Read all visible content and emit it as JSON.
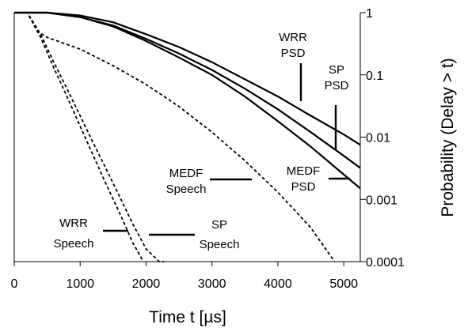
{
  "chart_data": {
    "type": "line",
    "xlabel": "Time t [µs]",
    "ylabel": "Probability (Delay > t)",
    "xlim": [
      0,
      5250
    ],
    "ylim": [
      0.0001,
      1
    ],
    "y_scale": "log",
    "x_ticks": [
      "0",
      "1000",
      "2000",
      "3000",
      "4000",
      "5000"
    ],
    "y_ticks": [
      "1",
      "0.1",
      "0.01",
      "0.001",
      "0.0001"
    ],
    "grid": false,
    "series": [
      {
        "name": "WRR PSD",
        "style": "solid",
        "x": [
          0,
          500,
          1000,
          1500,
          2000,
          2500,
          3000,
          3500,
          4000,
          4500,
          5000,
          5250
        ],
        "y": [
          1,
          1,
          0.9,
          0.7,
          0.45,
          0.28,
          0.16,
          0.085,
          0.045,
          0.022,
          0.011,
          0.0075
        ]
      },
      {
        "name": "SP PSD",
        "style": "solid",
        "x": [
          0,
          500,
          1000,
          1500,
          2000,
          2500,
          3000,
          3500,
          4000,
          4500,
          5000,
          5250
        ],
        "y": [
          1,
          1,
          0.85,
          0.62,
          0.38,
          0.22,
          0.12,
          0.06,
          0.028,
          0.012,
          0.005,
          0.0032
        ]
      },
      {
        "name": "MEDF PSD",
        "style": "solid",
        "x": [
          0,
          500,
          1000,
          1500,
          2000,
          2500,
          3000,
          3500,
          4000,
          4500,
          5000,
          5250
        ],
        "y": [
          1,
          1,
          0.85,
          0.6,
          0.35,
          0.19,
          0.1,
          0.045,
          0.018,
          0.007,
          0.0025,
          0.0015
        ]
      },
      {
        "name": "MEDF Speech",
        "style": "dashed",
        "x": [
          0,
          200,
          350,
          500,
          1000,
          1500,
          2000,
          2500,
          3000,
          3500,
          4000,
          4500,
          4860
        ],
        "y": [
          1,
          1,
          0.5,
          0.4,
          0.26,
          0.14,
          0.07,
          0.031,
          0.012,
          0.0042,
          0.0013,
          0.00035,
          0.0001
        ]
      },
      {
        "name": "WRR Speech",
        "style": "dashed",
        "x": [
          0,
          200,
          400,
          600,
          800,
          1000,
          1200,
          1400,
          1600,
          1800,
          1960
        ],
        "y": [
          1,
          1,
          0.4,
          0.13,
          0.045,
          0.015,
          0.005,
          0.0017,
          0.0006,
          0.0002,
          0.0001
        ]
      },
      {
        "name": "SP Speech",
        "style": "dashed",
        "x": [
          0,
          200,
          400,
          600,
          800,
          1000,
          1200,
          1400,
          1600,
          1800,
          2000,
          2200,
          2270
        ],
        "y": [
          1,
          1,
          0.45,
          0.16,
          0.06,
          0.022,
          0.008,
          0.003,
          0.0011,
          0.0004,
          0.00016,
          0.0001,
          0.0001
        ]
      }
    ],
    "annotations": [
      {
        "lines": [
          "WRR",
          "PSD"
        ]
      },
      {
        "lines": [
          "SP",
          "PSD"
        ]
      },
      {
        "lines": [
          "MEDF",
          "PSD"
        ]
      },
      {
        "lines": [
          "MEDF",
          "Speech"
        ]
      },
      {
        "lines": [
          "WRR",
          "Speech"
        ]
      },
      {
        "lines": [
          "SP",
          "Speech"
        ]
      }
    ]
  }
}
